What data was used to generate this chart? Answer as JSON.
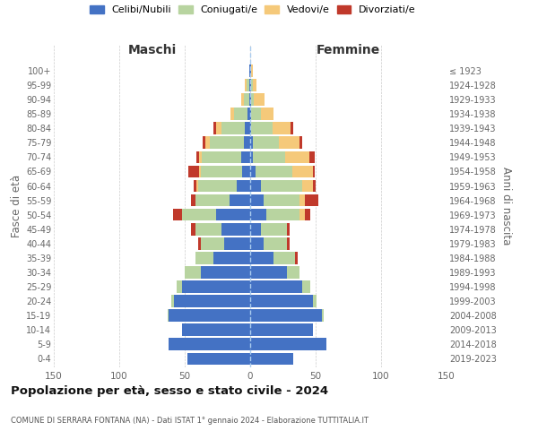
{
  "age_groups": [
    "0-4",
    "5-9",
    "10-14",
    "15-19",
    "20-24",
    "25-29",
    "30-34",
    "35-39",
    "40-44",
    "45-49",
    "50-54",
    "55-59",
    "60-64",
    "65-69",
    "70-74",
    "75-79",
    "80-84",
    "85-89",
    "90-94",
    "95-99",
    "100+"
  ],
  "birth_years": [
    "2019-2023",
    "2014-2018",
    "2009-2013",
    "2004-2008",
    "1999-2003",
    "1994-1998",
    "1989-1993",
    "1984-1988",
    "1979-1983",
    "1974-1978",
    "1969-1973",
    "1964-1968",
    "1959-1963",
    "1954-1958",
    "1949-1953",
    "1944-1948",
    "1939-1943",
    "1934-1938",
    "1929-1933",
    "1924-1928",
    "≤ 1923"
  ],
  "maschi": {
    "celibi": [
      48,
      62,
      52,
      62,
      58,
      52,
      38,
      28,
      20,
      22,
      26,
      16,
      10,
      6,
      7,
      5,
      4,
      2,
      1,
      1,
      1
    ],
    "coniugati": [
      0,
      0,
      0,
      1,
      2,
      4,
      12,
      14,
      18,
      20,
      26,
      26,
      30,
      32,
      30,
      26,
      18,
      10,
      4,
      2,
      0
    ],
    "vedovi": [
      0,
      0,
      0,
      0,
      0,
      0,
      0,
      0,
      0,
      0,
      0,
      0,
      1,
      1,
      2,
      3,
      4,
      3,
      2,
      1,
      0
    ],
    "divorziati": [
      0,
      0,
      0,
      0,
      0,
      0,
      0,
      0,
      2,
      3,
      7,
      3,
      2,
      8,
      2,
      2,
      2,
      0,
      0,
      0,
      0
    ]
  },
  "femmine": {
    "nubili": [
      33,
      58,
      48,
      55,
      48,
      40,
      28,
      18,
      10,
      8,
      12,
      10,
      8,
      4,
      2,
      2,
      1,
      1,
      1,
      1,
      1
    ],
    "coniugate": [
      0,
      0,
      0,
      1,
      3,
      6,
      10,
      16,
      18,
      20,
      26,
      28,
      32,
      28,
      25,
      20,
      16,
      7,
      2,
      1,
      0
    ],
    "vedove": [
      0,
      0,
      0,
      0,
      0,
      0,
      0,
      0,
      0,
      0,
      4,
      4,
      8,
      16,
      18,
      16,
      14,
      10,
      8,
      3,
      1
    ],
    "divorziate": [
      0,
      0,
      0,
      0,
      0,
      0,
      0,
      2,
      2,
      2,
      4,
      10,
      2,
      1,
      4,
      2,
      2,
      0,
      0,
      0,
      0
    ]
  },
  "colors": {
    "celibi": "#4472c4",
    "coniugati": "#b8d4a0",
    "vedovi": "#f5c97a",
    "divorziati": "#c0392b"
  },
  "xlim": 150,
  "title": "Popolazione per età, sesso e stato civile - 2024",
  "subtitle": "COMUNE DI SERRARA FONTANA (NA) - Dati ISTAT 1° gennaio 2024 - Elaborazione TUTTITALIA.IT",
  "ylabel_left": "Fasce di età",
  "ylabel_right": "Anni di nascita",
  "xlabel_maschi": "Maschi",
  "xlabel_femmine": "Femmine",
  "legend_labels": [
    "Celibi/Nubili",
    "Coniugati/e",
    "Vedovi/e",
    "Divorziati/e"
  ],
  "background_color": "#ffffff",
  "grid_color": "#cccccc",
  "center_line_color": "#aaccee",
  "tick_color": "#666666"
}
